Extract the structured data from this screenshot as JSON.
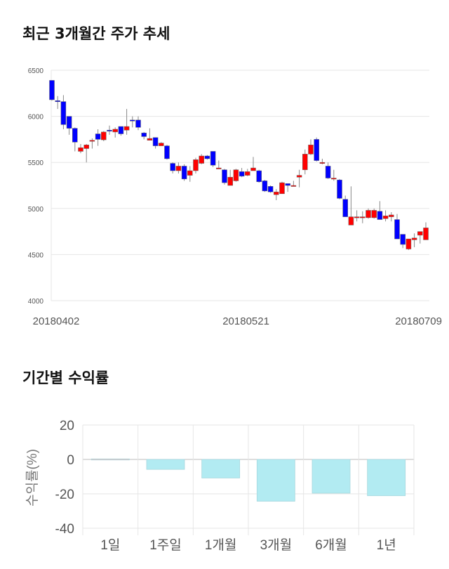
{
  "section1": {
    "title": "최근 3개월간 주가 추세"
  },
  "section2": {
    "title": "기간별 수익률"
  },
  "colors": {
    "up": "#ff0000",
    "down": "#0000ff",
    "return_bar": "#b2ebf2",
    "return_bar_positive": "#f4b8b8",
    "grid": "#e6e6e6"
  },
  "chart_data": [
    {
      "type": "candlestick",
      "ylim": [
        4000,
        6500
      ],
      "yticks": [
        4000,
        4500,
        5000,
        5500,
        6000,
        6500
      ],
      "xtick_labels": [
        {
          "index": 0,
          "label": "20180402"
        },
        {
          "index": 33,
          "label": "20180521"
        },
        {
          "index": 63,
          "label": "20180709"
        }
      ],
      "grid": true,
      "ohlc": [
        [
          6390,
          6390,
          6170,
          6180
        ],
        [
          6170,
          6220,
          6080,
          6160
        ],
        [
          6160,
          6230,
          5860,
          5910
        ],
        [
          6000,
          6000,
          5800,
          5870
        ],
        [
          5870,
          5880,
          5620,
          5720
        ],
        [
          5620,
          5700,
          5600,
          5660
        ],
        [
          5650,
          5700,
          5500,
          5690
        ],
        [
          5740,
          5760,
          5650,
          5740
        ],
        [
          5810,
          5860,
          5680,
          5750
        ],
        [
          5745,
          5840,
          5730,
          5830
        ],
        [
          5850,
          5900,
          5800,
          5840
        ],
        [
          5830,
          5880,
          5770,
          5860
        ],
        [
          5890,
          5890,
          5790,
          5810
        ],
        [
          5850,
          6080,
          5800,
          5890
        ],
        [
          5960,
          6000,
          5880,
          5950
        ],
        [
          5960,
          6000,
          5850,
          5880
        ],
        [
          5820,
          5830,
          5750,
          5780
        ],
        [
          5740,
          5870,
          5740,
          5760
        ],
        [
          5770,
          5770,
          5650,
          5680
        ],
        [
          5680,
          5720,
          5680,
          5710
        ],
        [
          5680,
          5690,
          5530,
          5540
        ],
        [
          5490,
          5500,
          5380,
          5410
        ],
        [
          5410,
          5500,
          5380,
          5460
        ],
        [
          5460,
          5480,
          5300,
          5320
        ],
        [
          5360,
          5460,
          5290,
          5410
        ],
        [
          5410,
          5550,
          5380,
          5530
        ],
        [
          5490,
          5590,
          5480,
          5570
        ],
        [
          5570,
          5580,
          5530,
          5540
        ],
        [
          5620,
          5620,
          5450,
          5470
        ],
        [
          5430,
          5520,
          5430,
          5440
        ],
        [
          5420,
          5430,
          5260,
          5280
        ],
        [
          5250,
          5420,
          5250,
          5340
        ],
        [
          5300,
          5430,
          5290,
          5420
        ],
        [
          5400,
          5440,
          5340,
          5350
        ],
        [
          5360,
          5430,
          5350,
          5400
        ],
        [
          5410,
          5560,
          5410,
          5440
        ],
        [
          5410,
          5420,
          5280,
          5290
        ],
        [
          5300,
          5310,
          5180,
          5190
        ],
        [
          5240,
          5250,
          5170,
          5180
        ],
        [
          5150,
          5210,
          5090,
          5180
        ],
        [
          5160,
          5290,
          5160,
          5280
        ],
        [
          5270,
          5270,
          5180,
          5250
        ],
        [
          5250,
          5300,
          5240,
          5250
        ],
        [
          5340,
          5420,
          5230,
          5360
        ],
        [
          5420,
          5640,
          5370,
          5590
        ],
        [
          5590,
          5750,
          5580,
          5690
        ],
        [
          5750,
          5770,
          5510,
          5520
        ],
        [
          5490,
          5540,
          5480,
          5500
        ],
        [
          5460,
          5500,
          5320,
          5330
        ],
        [
          5320,
          5420,
          5300,
          5330
        ],
        [
          5310,
          5320,
          5100,
          5110
        ],
        [
          5100,
          5140,
          4910,
          4910
        ],
        [
          4820,
          5240,
          4820,
          4910
        ],
        [
          4910,
          4980,
          4860,
          4910
        ],
        [
          4910,
          4970,
          4840,
          4910
        ],
        [
          4900,
          5000,
          4890,
          4980
        ],
        [
          4900,
          5000,
          4890,
          4980
        ],
        [
          4970,
          5080,
          4880,
          4880
        ],
        [
          4890,
          4980,
          4860,
          4920
        ],
        [
          4910,
          4960,
          4860,
          4930
        ],
        [
          4880,
          4940,
          4670,
          4670
        ],
        [
          4720,
          4720,
          4570,
          4610
        ],
        [
          4560,
          4670,
          4550,
          4670
        ],
        [
          4660,
          4730,
          4580,
          4680
        ],
        [
          4710,
          4750,
          4620,
          4750
        ],
        [
          4660,
          4850,
          4660,
          4790
        ]
      ]
    },
    {
      "type": "bar",
      "categories": [
        "1일",
        "1주일",
        "1개월",
        "3개월",
        "6개월",
        "1년"
      ],
      "values": [
        0.3,
        -5.8,
        -10.8,
        -24.3,
        -19.6,
        -21.1
      ],
      "ylabel": "수익률(%)",
      "ylim": [
        -40,
        20
      ],
      "yticks": [
        20,
        0,
        -20,
        -40
      ],
      "grid": true
    }
  ]
}
